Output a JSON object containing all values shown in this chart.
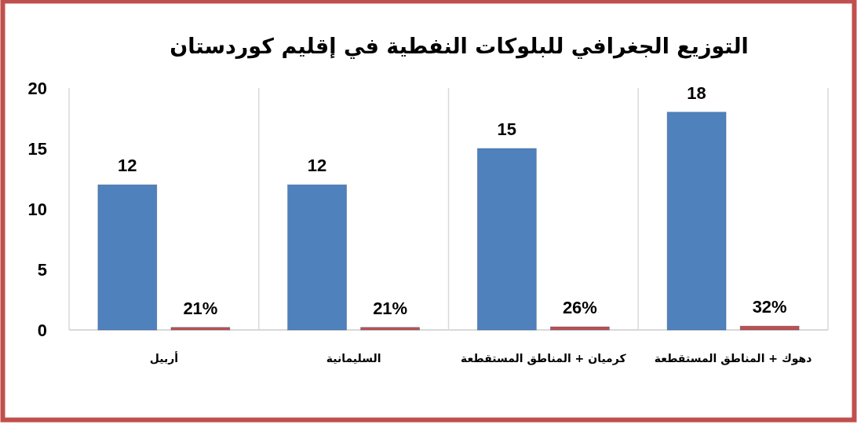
{
  "chart_data": {
    "type": "bar",
    "title": "التوزيع الجغرافي للبلوكات النفطية في إقليم كوردستان",
    "categories": [
      "أربيل",
      "السليمانية",
      "كرميان + المناطق المستقطعة",
      "دهوك + المناطق المستقطعة"
    ],
    "series": [
      {
        "color": "#4f81bd",
        "values": [
          12,
          12,
          15,
          18
        ],
        "value_labels": [
          "12",
          "12",
          "15",
          "18"
        ]
      },
      {
        "color": "#c0504d",
        "values": [
          0.21,
          0.21,
          0.26,
          0.32
        ],
        "value_labels": [
          "21%",
          "21%",
          "26%",
          "32%"
        ]
      }
    ],
    "ylim": [
      0,
      20
    ],
    "yticks": [
      0,
      5,
      10,
      15,
      20
    ],
    "grid": "x"
  }
}
